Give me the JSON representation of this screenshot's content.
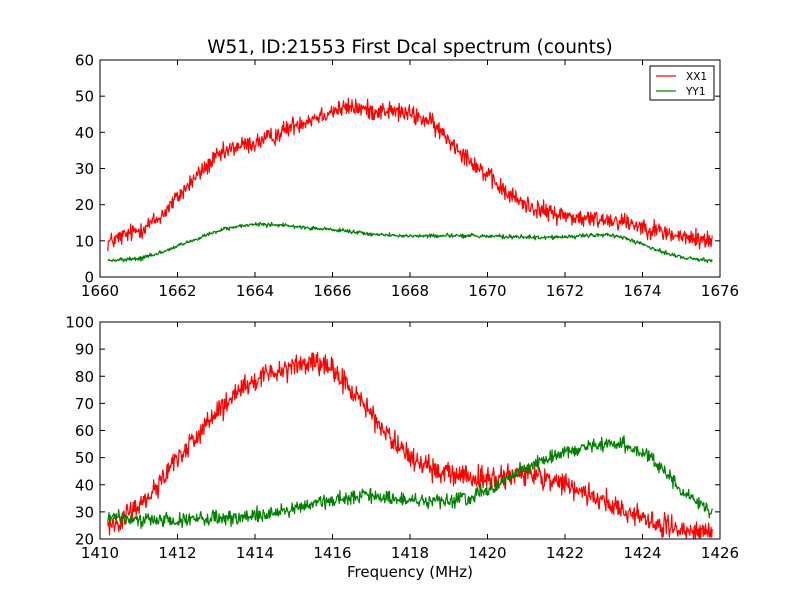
{
  "figure_title": "W51, ID:21553 First Dcal spectrum (counts)",
  "colors": {
    "xx": "#ff0000",
    "yy": "#008000",
    "axes": "#000000",
    "background": "#ffffff"
  },
  "chart_data": [
    {
      "type": "line",
      "panel": "top",
      "title": "W51, ID:21553 First Dcal spectrum (counts)",
      "xlabel": "",
      "ylabel": "",
      "xlim": [
        1660,
        1676
      ],
      "ylim": [
        0,
        60
      ],
      "xticks": [
        1660,
        1662,
        1664,
        1666,
        1668,
        1670,
        1672,
        1674,
        1676
      ],
      "yticks": [
        0,
        10,
        20,
        30,
        40,
        50,
        60
      ],
      "x_range": [
        1660.2,
        1675.8
      ],
      "legend": {
        "location": "top-right",
        "entries": [
          "XX1",
          "YY1"
        ]
      },
      "series": [
        {
          "name": "XX1",
          "color": "#ff0000",
          "noise": 1.6,
          "points": [
            [
              1660.2,
              9.5
            ],
            [
              1661,
              13
            ],
            [
              1661.5,
              16
            ],
            [
              1662,
              22
            ],
            [
              1662.5,
              28
            ],
            [
              1663,
              33
            ],
            [
              1663.5,
              36
            ],
            [
              1664,
              37
            ],
            [
              1664.5,
              39
            ],
            [
              1665,
              42
            ],
            [
              1665.5,
              44
            ],
            [
              1666,
              46
            ],
            [
              1666.5,
              47
            ],
            [
              1667,
              46
            ],
            [
              1667.5,
              46
            ],
            [
              1668,
              45
            ],
            [
              1668.5,
              43
            ],
            [
              1669,
              38
            ],
            [
              1669.5,
              33
            ],
            [
              1670,
              28
            ],
            [
              1670.5,
              23
            ],
            [
              1671,
              20
            ],
            [
              1671.5,
              18
            ],
            [
              1672,
              17
            ],
            [
              1672.5,
              16
            ],
            [
              1673,
              16
            ],
            [
              1673.5,
              15.5
            ],
            [
              1674,
              14
            ],
            [
              1674.5,
              12.5
            ],
            [
              1675,
              11
            ],
            [
              1675.8,
              10
            ]
          ]
        },
        {
          "name": "YY1",
          "color": "#008000",
          "noise": 0.35,
          "points": [
            [
              1660.2,
              4.5
            ],
            [
              1661,
              5
            ],
            [
              1661.5,
              6.5
            ],
            [
              1662,
              8.5
            ],
            [
              1662.5,
              10.5
            ],
            [
              1663,
              12.5
            ],
            [
              1663.5,
              14
            ],
            [
              1664,
              14.5
            ],
            [
              1664.5,
              14.5
            ],
            [
              1665,
              14
            ],
            [
              1665.5,
              13.5
            ],
            [
              1666,
              13
            ],
            [
              1666.5,
              12.5
            ],
            [
              1667,
              11.8
            ],
            [
              1668,
              11.3
            ],
            [
              1669,
              11.5
            ],
            [
              1670,
              11.3
            ],
            [
              1671,
              11
            ],
            [
              1672,
              11
            ],
            [
              1672.5,
              11.4
            ],
            [
              1673,
              11.6
            ],
            [
              1673.5,
              11
            ],
            [
              1674,
              9
            ],
            [
              1674.5,
              7
            ],
            [
              1675,
              5.5
            ],
            [
              1675.8,
              4.5
            ]
          ]
        }
      ]
    },
    {
      "type": "line",
      "panel": "bottom",
      "title": "",
      "xlabel": "Frequency (MHz)",
      "ylabel": "",
      "xlim": [
        1410,
        1426
      ],
      "ylim": [
        20,
        100
      ],
      "xticks": [
        1410,
        1412,
        1414,
        1416,
        1418,
        1420,
        1422,
        1424,
        1426
      ],
      "yticks": [
        20,
        30,
        40,
        50,
        60,
        70,
        80,
        90,
        100
      ],
      "x_range": [
        1410.2,
        1425.8
      ],
      "series": [
        {
          "name": "XX1",
          "color": "#ff0000",
          "noise": 2.6,
          "points": [
            [
              1410.2,
              25
            ],
            [
              1410.5,
              27
            ],
            [
              1411,
              32
            ],
            [
              1411.5,
              40
            ],
            [
              1412,
              50
            ],
            [
              1412.5,
              58
            ],
            [
              1413,
              66
            ],
            [
              1413.5,
              73
            ],
            [
              1414,
              78
            ],
            [
              1414.5,
              82
            ],
            [
              1415,
              84
            ],
            [
              1415.5,
              85
            ],
            [
              1416,
              82
            ],
            [
              1416.5,
              75
            ],
            [
              1417,
              66
            ],
            [
              1417.5,
              57
            ],
            [
              1418,
              50
            ],
            [
              1418.5,
              46
            ],
            [
              1419,
              44
            ],
            [
              1419.5,
              43
            ],
            [
              1420,
              42
            ],
            [
              1420.5,
              43
            ],
            [
              1421,
              44
            ],
            [
              1421.5,
              43
            ],
            [
              1422,
              40
            ],
            [
              1422.5,
              37
            ],
            [
              1423,
              34
            ],
            [
              1423.5,
              31
            ],
            [
              1424,
              28
            ],
            [
              1424.5,
              25
            ],
            [
              1425,
              23
            ],
            [
              1425.8,
              22
            ]
          ]
        },
        {
          "name": "YY1",
          "color": "#008000",
          "noise": 1.6,
          "points": [
            [
              1410.2,
              28
            ],
            [
              1411,
              27
            ],
            [
              1412,
              27
            ],
            [
              1413,
              27.5
            ],
            [
              1414,
              28.5
            ],
            [
              1414.5,
              29.5
            ],
            [
              1415,
              31
            ],
            [
              1415.5,
              33
            ],
            [
              1416,
              34.5
            ],
            [
              1416.5,
              35.5
            ],
            [
              1417,
              36
            ],
            [
              1417.5,
              35
            ],
            [
              1418,
              34
            ],
            [
              1418.5,
              34
            ],
            [
              1419,
              34
            ],
            [
              1419.5,
              35
            ],
            [
              1420,
              38
            ],
            [
              1420.5,
              42
            ],
            [
              1421,
              46
            ],
            [
              1421.5,
              49
            ],
            [
              1422,
              52
            ],
            [
              1422.5,
              54
            ],
            [
              1423,
              55
            ],
            [
              1423.5,
              55
            ],
            [
              1424,
              52
            ],
            [
              1424.5,
              46
            ],
            [
              1425,
              38
            ],
            [
              1425.8,
              30
            ]
          ]
        }
      ]
    }
  ]
}
